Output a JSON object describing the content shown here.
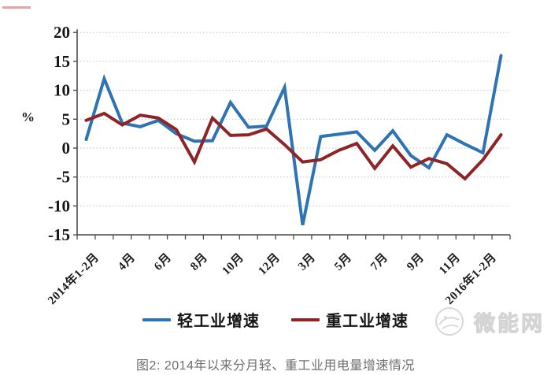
{
  "chart_data": {
    "type": "line",
    "title": "",
    "ylabel": "%",
    "xlabel": "",
    "ylim": [
      -15,
      20
    ],
    "grid": "dotted-horizontal",
    "legend_position": "bottom",
    "y_ticks": [
      20,
      15,
      10,
      5,
      0,
      -5,
      -10,
      -15
    ],
    "categories": [
      "2014年1-2月",
      "2014年3月",
      "2014年4月",
      "2014年5月",
      "2014年6月",
      "2014年7月",
      "2014年8月",
      "2014年9月",
      "2014年10月",
      "2014年11月",
      "2014年12月",
      "2015年1-2月",
      "2015年3月",
      "2015年4月",
      "2015年5月",
      "2015年6月",
      "2015年7月",
      "2015年8月",
      "2015年9月",
      "2015年10月",
      "2015年11月",
      "2015年12月",
      "2016年1-2月",
      "2016年3月"
    ],
    "x_tick_labels": [
      "2014年1-2月",
      "4月",
      "6月",
      "8月",
      "10月",
      "12月",
      "3月",
      "5月",
      "7月",
      "9月",
      "11月",
      "2016年1-2月"
    ],
    "x_tick_label_positions": [
      1,
      3,
      5,
      7,
      9,
      11,
      13,
      15,
      17,
      19,
      21,
      23
    ],
    "series": [
      {
        "name": "轻工业增速",
        "color": "#2E74B5",
        "values": [
          1.5,
          12,
          4.3,
          3.7,
          4.8,
          2.5,
          1.2,
          1.3,
          7.9,
          3.6,
          3.8,
          10.5,
          -13.3,
          2.0,
          2.4,
          2.8,
          -0.4,
          3.0,
          -1.3,
          -3.4,
          2.3,
          0.7,
          -0.8,
          16.0
        ]
      },
      {
        "name": "重工业增速",
        "color": "#8E2426",
        "values": [
          4.8,
          6.0,
          4.0,
          5.7,
          5.2,
          3.2,
          -2.4,
          5.2,
          2.2,
          2.3,
          3.3,
          0.6,
          -2.4,
          -2.0,
          -0.4,
          0.8,
          -3.5,
          0.4,
          -3.3,
          -1.8,
          -2.7,
          -5.3,
          -2.0,
          2.3
        ]
      }
    ]
  },
  "caption": "图2: 2014年以来分月轻、重工业用电量增速情况",
  "watermark": {
    "text": "微能网"
  }
}
